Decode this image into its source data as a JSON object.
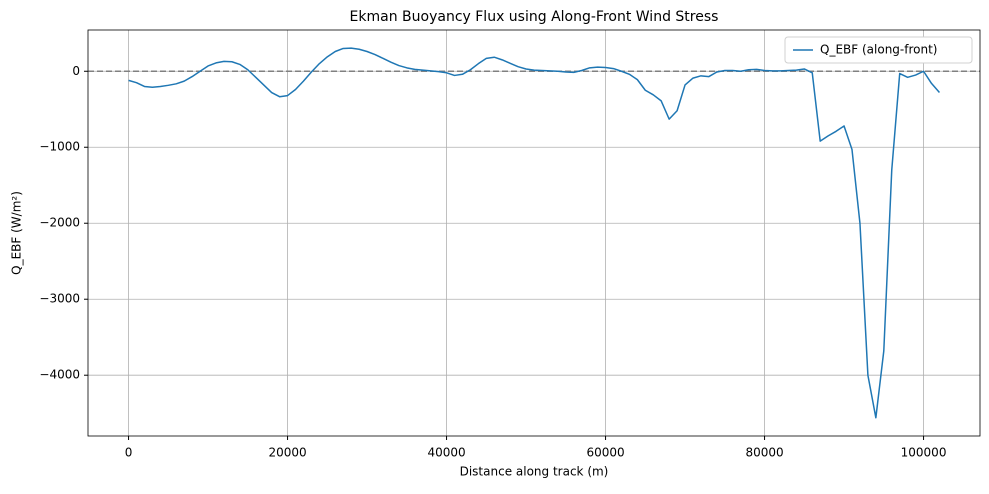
{
  "chart_data": {
    "type": "line",
    "title": "Ekman Buoyancy Flux using Along-Front Wind Stress",
    "xlabel": "Distance along track (m)",
    "ylabel": "Q_EBF (W/m²)",
    "x": [
      0,
      1000,
      2000,
      3000,
      4000,
      5000,
      6000,
      7000,
      8000,
      9000,
      10000,
      11000,
      12000,
      13000,
      14000,
      15000,
      16000,
      17000,
      18000,
      19000,
      20000,
      21000,
      22000,
      23000,
      24000,
      25000,
      26000,
      27000,
      28000,
      29000,
      30000,
      31000,
      32000,
      33000,
      34000,
      35000,
      36000,
      37000,
      38000,
      39000,
      40000,
      41000,
      42000,
      43000,
      44000,
      45000,
      46000,
      47000,
      48000,
      49000,
      50000,
      51000,
      52000,
      53000,
      54000,
      55000,
      56000,
      57000,
      58000,
      59000,
      60000,
      61000,
      62000,
      63000,
      64000,
      65000,
      66000,
      67000,
      68000,
      69000,
      70000,
      71000,
      72000,
      73000,
      74000,
      75000,
      76000,
      77000,
      78000,
      79000,
      80000,
      81000,
      82000,
      83000,
      84000,
      85000,
      86000,
      87000,
      88000,
      89000,
      90000,
      91000,
      92000,
      93000,
      94000,
      95000,
      96000,
      97000,
      98000,
      99000,
      100000,
      101000,
      102000
    ],
    "series": [
      {
        "name": "Q_EBF (along-front)",
        "color": "#1f77b4",
        "values": [
          -120,
          -150,
          -200,
          -210,
          -200,
          -185,
          -165,
          -130,
          -70,
          0,
          70,
          110,
          130,
          125,
          90,
          20,
          -80,
          -180,
          -280,
          -335,
          -320,
          -240,
          -130,
          -10,
          100,
          190,
          260,
          300,
          305,
          290,
          260,
          220,
          170,
          120,
          75,
          45,
          25,
          15,
          5,
          -5,
          -20,
          -55,
          -40,
          20,
          100,
          170,
          185,
          150,
          105,
          60,
          30,
          15,
          10,
          5,
          0,
          -10,
          -15,
          10,
          45,
          55,
          50,
          35,
          0,
          -40,
          -110,
          -250,
          -310,
          -390,
          -630,
          -520,
          -180,
          -90,
          -60,
          -70,
          -10,
          10,
          10,
          0,
          20,
          25,
          10,
          5,
          5,
          10,
          15,
          30,
          -20,
          -920,
          -850,
          -790,
          -720,
          -1030,
          -2000,
          -4000,
          -4560,
          -3680,
          -1300,
          -30,
          -80,
          -50,
          0,
          -160,
          -280
        ]
      }
    ],
    "hline": 0,
    "xlim": [
      -5100,
      107100
    ],
    "ylim": [
      -4800,
      543
    ],
    "xticks": [
      0,
      20000,
      40000,
      60000,
      80000,
      100000
    ],
    "yticks": [
      {
        "value": -4000,
        "label": "−4000"
      },
      {
        "value": -3000,
        "label": "−3000"
      },
      {
        "value": -2000,
        "label": "−2000"
      },
      {
        "value": -1000,
        "label": "−1000"
      },
      0
    ],
    "grid": true,
    "legend": "upper right"
  }
}
